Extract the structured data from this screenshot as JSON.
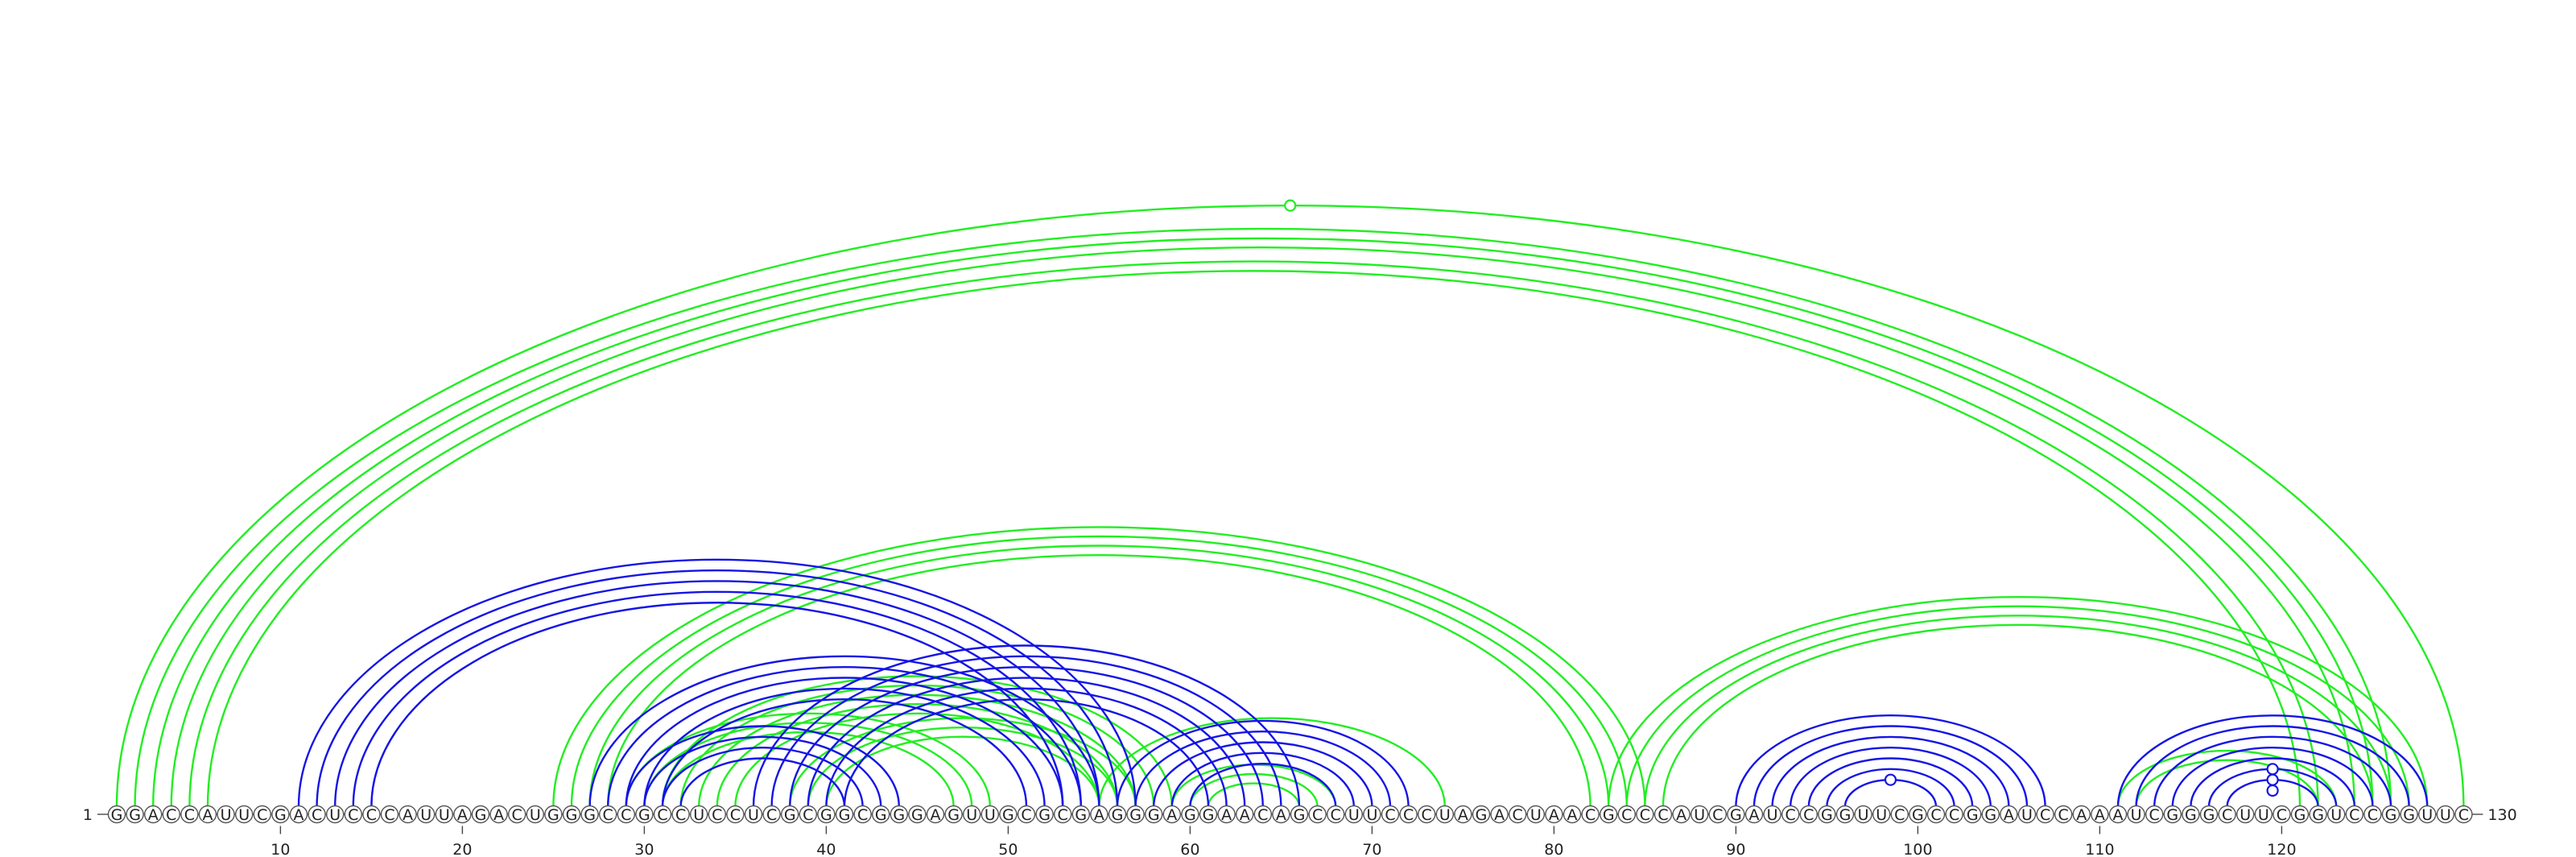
{
  "sequence": "GGACCAUUCGACUCCCAUUAGACUGGGCCGCCUCCUCGCGGCGGGAGUUGCGCGAGGGAGGAACAGCCUUCCCUAGACUAACGCCCAUCGAUCCGGUUCGCCGGAUCCAAAUCGGGCUUCGGUCCGGUUC",
  "length": 130,
  "start_label": "1",
  "end_label": "130",
  "tick_labels": [
    "10",
    "20",
    "30",
    "40",
    "50",
    "60",
    "70",
    "80",
    "90",
    "100",
    "110",
    "120"
  ],
  "colors": {
    "green_arc": "#22ee22",
    "blue_arc": "#1414e6",
    "circle_stroke": "#555555"
  },
  "green_helices": [
    {
      "i": 1,
      "j": 130,
      "n": 1
    },
    {
      "i": 2,
      "j": 126,
      "n": 1
    },
    {
      "i": 3,
      "j": 125,
      "n": 1
    },
    {
      "i": 4,
      "j": 124,
      "n": 1
    },
    {
      "i": 5,
      "j": 122,
      "n": 2
    },
    {
      "i": 25,
      "j": 85,
      "n": 4
    },
    {
      "i": 29,
      "j": 49,
      "n": 3
    },
    {
      "i": 31,
      "j": 59,
      "n": 5
    },
    {
      "i": 38,
      "j": 57,
      "n": 3
    },
    {
      "i": 55,
      "j": 74,
      "n": 1
    },
    {
      "i": 59,
      "j": 68,
      "n": 3
    },
    {
      "i": 83,
      "j": 128,
      "n": 4
    },
    {
      "i": 111,
      "j": 123,
      "n": 2
    }
  ],
  "blue_helices": [
    {
      "i": 11,
      "j": 57,
      "n": 5
    },
    {
      "i": 27,
      "j": 55,
      "n": 5
    },
    {
      "i": 36,
      "j": 66,
      "n": 6
    },
    {
      "i": 29,
      "j": 44,
      "n": 4
    },
    {
      "i": 56,
      "j": 72,
      "n": 5
    },
    {
      "i": 90,
      "j": 107,
      "n": 7
    },
    {
      "i": 111,
      "j": 128,
      "n": 7
    }
  ],
  "green_markers": [
    {
      "i": 1,
      "j": 130
    }
  ],
  "blue_markers": [
    {
      "i": 96,
      "j": 101
    },
    {
      "i": 116,
      "j": 123
    },
    {
      "i": 117,
      "j": 122
    },
    {
      "i": 118,
      "j": 121
    }
  ]
}
